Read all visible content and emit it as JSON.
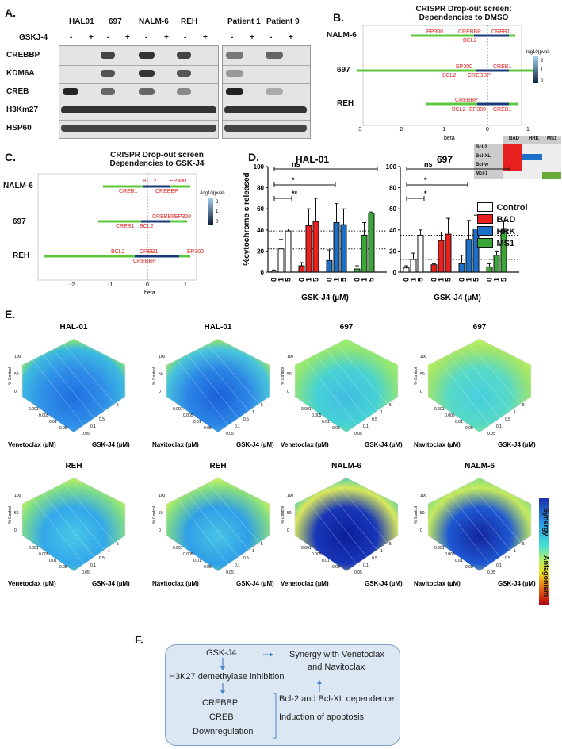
{
  "panelA": {
    "label": "A.",
    "cell_lines": [
      "HAL01",
      "697",
      "NALM-6",
      "REH"
    ],
    "patients": [
      "Patient 1",
      "Patient 9"
    ],
    "treatment_label": "GSKJ-4",
    "signs": [
      "-",
      "+",
      "-",
      "+",
      "-",
      "+",
      "-",
      "+"
    ],
    "patient_signs": [
      "-",
      "+",
      "-",
      "+"
    ],
    "proteins": [
      "CREBBP",
      "KDM6A",
      "CREB",
      "H3Km27",
      "HSP60"
    ]
  },
  "panelB": {
    "label": "B.",
    "title_line1": "CRISPR Drop-out screen:",
    "title_line2": "Dependencies to DMSO",
    "rows": [
      "NALM-6",
      "697",
      "REH"
    ],
    "x_ticks": [
      "-3",
      "-2",
      "-1",
      "0",
      "1"
    ],
    "xlabel": "beta",
    "legend_title": "-log10(pval)",
    "legend_ticks": [
      "2",
      "1",
      "0"
    ],
    "genes_nalm6": [
      "EP300",
      "CREBBP",
      "CREB1",
      "BCL2"
    ],
    "genes_697": [
      "EP300",
      "CREB1",
      "BCL2",
      "CREBBP"
    ],
    "genes_reh": [
      "CREBBP",
      "BCL2",
      "EP300",
      "CREB1"
    ]
  },
  "bh3": {
    "cols": [
      "BAD",
      "HRK",
      "MS1"
    ],
    "rows": [
      "Bcl-2",
      "Bcl-XL",
      "Bcl-w",
      "Mcl-1"
    ],
    "colors": {
      "bad": "#e8201e",
      "hrk": "#1c6fc6",
      "ms1": "#6aaa3a"
    }
  },
  "panelC": {
    "label": "C.",
    "title_line1": "CRISPR Drop-out screen",
    "title_line2": "Dependencies to GSK-J4",
    "rows": [
      "NALM-6",
      "697",
      "REH"
    ],
    "x_ticks": [
      "-2",
      "-1",
      "0",
      "1"
    ],
    "xlabel": "beta",
    "legend_title": "-log10(pval)",
    "legend_ticks": [
      "2",
      "1",
      "0"
    ],
    "genes_nalm6": [
      "BCL2",
      "EP300",
      "CREB1",
      "CREBBP"
    ],
    "genes_697": [
      "CREBBP",
      "EP300",
      "CREB1",
      "BCL2"
    ],
    "genes_reh": [
      "BCL2",
      "CREB1",
      "EP300",
      "CREBBP"
    ]
  },
  "panelD": {
    "label": "D.",
    "ylabel": "%cytochrome c released",
    "xlabel": "GSK-J4 (µM)",
    "dose_labels": [
      "0",
      "1",
      "5"
    ],
    "sig": [
      "ns",
      "*",
      "**",
      "ns",
      "*",
      "*"
    ],
    "legend": [
      "Control",
      "BAD",
      "HRK",
      "MS1"
    ]
  },
  "chart_data": [
    {
      "type": "bar",
      "title": "HAL-01",
      "xlabel": "GSK-J4 (µM)",
      "ylabel": "%cytochrome c released",
      "ylim": [
        0,
        100
      ],
      "y_ticks": [
        0,
        20,
        40,
        60,
        80,
        100
      ],
      "categories": [
        "0",
        "1",
        "5"
      ],
      "series": [
        {
          "name": "Control",
          "values": [
            1,
            22,
            39
          ],
          "errors": [
            1,
            9,
            2
          ]
        },
        {
          "name": "BAD",
          "values": [
            6,
            44,
            48
          ],
          "errors": [
            3,
            16,
            22
          ]
        },
        {
          "name": "HRK",
          "values": [
            11,
            47,
            45
          ],
          "errors": [
            10,
            18,
            15
          ]
        },
        {
          "name": "MS1",
          "values": [
            3,
            35,
            56
          ],
          "errors": [
            3,
            12,
            1
          ]
        }
      ],
      "reference_lines": [
        22,
        39
      ]
    },
    {
      "type": "bar",
      "title": "697",
      "xlabel": "GSK-J4 (µM)",
      "ylabel": "%cytochrome c released",
      "ylim": [
        0,
        100
      ],
      "y_ticks": [
        0,
        20,
        40,
        60,
        80,
        100
      ],
      "categories": [
        "0",
        "1",
        "5"
      ],
      "series": [
        {
          "name": "Control",
          "values": [
            4,
            12,
            35
          ],
          "errors": [
            2,
            6,
            5
          ]
        },
        {
          "name": "BAD",
          "values": [
            7,
            30,
            36
          ],
          "errors": [
            1,
            8,
            15
          ]
        },
        {
          "name": "HRK",
          "values": [
            8,
            31,
            41
          ],
          "errors": [
            8,
            18,
            13
          ]
        },
        {
          "name": "MS1",
          "values": [
            5,
            16,
            40
          ],
          "errors": [
            3,
            4,
            8
          ]
        }
      ],
      "reference_lines": [
        12,
        35
      ]
    }
  ],
  "panelE": {
    "label": "E.",
    "plots": [
      {
        "title": "HAL-01",
        "drug": "Venetoclax (µM)"
      },
      {
        "title": "HAL-01",
        "drug": "Navitoclax (µM)"
      },
      {
        "title": "697",
        "drug": "Venetoclax (µM)"
      },
      {
        "title": "697",
        "drug": "Navitoclax (µM)"
      },
      {
        "title": "REH",
        "drug": "Venetoclax (µM)"
      },
      {
        "title": "REH",
        "drug": "Navitoclax (µM)"
      },
      {
        "title": "NALM-6",
        "drug": "Venetoclax (µM)"
      },
      {
        "title": "NALM-6",
        "drug": "Navitoclax (µM)"
      }
    ],
    "gsk_label": "GSK-J4 (µM)",
    "zlabel": "% Control",
    "z_ticks": [
      "100",
      "50",
      "0"
    ],
    "drug_ticks": [
      "0.001",
      "0.005",
      "0.01",
      "0.05"
    ],
    "gsk_ticks": [
      "0.05",
      "0.1",
      "0.5",
      "1",
      "5"
    ],
    "colorbar_top": "Synergy",
    "colorbar_bottom": "Antagonism"
  },
  "panelF": {
    "label": "F.",
    "gskj4": "GSK-J4",
    "h3k27": "H3K27 demethylase inhibition",
    "crebbp": "CREBBP",
    "creb": "CREB",
    "down": "Downregulation",
    "synergy1": "Synergy with Venetoclax",
    "synergy2": "and Navitoclax",
    "bcl": "Bcl-2 and Bcl-XL dependence",
    "apop": "Induction of apoptosis"
  }
}
